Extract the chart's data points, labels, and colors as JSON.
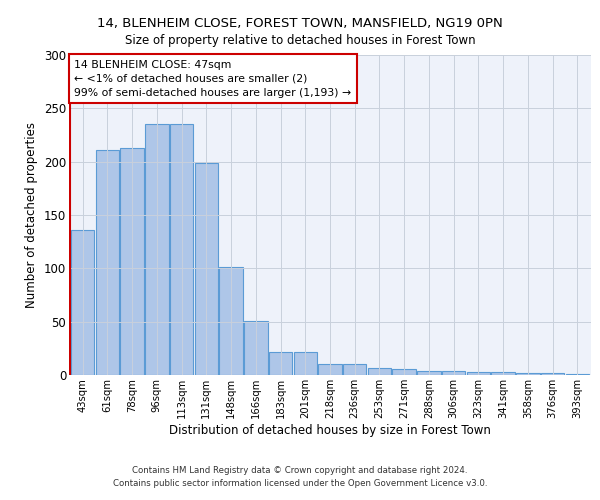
{
  "title": "14, BLENHEIM CLOSE, FOREST TOWN, MANSFIELD, NG19 0PN",
  "subtitle": "Size of property relative to detached houses in Forest Town",
  "xlabel": "Distribution of detached houses by size in Forest Town",
  "ylabel": "Number of detached properties",
  "bar_values": [
    136,
    211,
    213,
    235,
    235,
    199,
    101,
    51,
    22,
    22,
    10,
    10,
    7,
    6,
    4,
    4,
    3,
    3,
    2,
    2,
    1
  ],
  "bar_labels": [
    "43sqm",
    "61sqm",
    "78sqm",
    "96sqm",
    "113sqm",
    "131sqm",
    "148sqm",
    "166sqm",
    "183sqm",
    "201sqm",
    "218sqm",
    "236sqm",
    "253sqm",
    "271sqm",
    "288sqm",
    "306sqm",
    "323sqm",
    "341sqm",
    "358sqm",
    "376sqm",
    "393sqm"
  ],
  "bar_color": "#aec6e8",
  "bar_edge_color": "#5b9bd5",
  "annotation_line1": "14 BLENHEIM CLOSE: 47sqm",
  "annotation_line2": "← <1% of detached houses are smaller (2)",
  "annotation_line3": "99% of semi-detached houses are larger (1,193) →",
  "annotation_box_color": "#ffffff",
  "annotation_box_edge": "#cc0000",
  "ylim": [
    0,
    300
  ],
  "yticks": [
    0,
    50,
    100,
    150,
    200,
    250,
    300
  ],
  "bg_color": "#eef2fa",
  "footer_line1": "Contains HM Land Registry data © Crown copyright and database right 2024.",
  "footer_line2": "Contains public sector information licensed under the Open Government Licence v3.0."
}
